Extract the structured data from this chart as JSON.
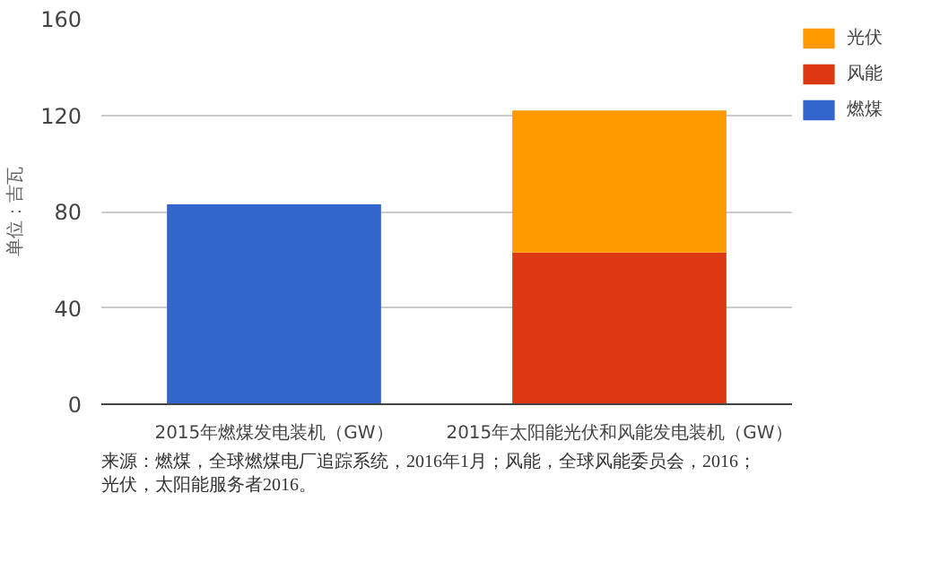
{
  "chart_data": {
    "type": "bar",
    "stacked": true,
    "ylabel": "单位：吉瓦",
    "categories": [
      "2015年燃煤发电装机（GW）",
      "2015年太阳能光伏和风能发电装机（GW）"
    ],
    "series": [
      {
        "name": "燃煤",
        "color": "#3366cc",
        "values": [
          83,
          null
        ]
      },
      {
        "name": "风能",
        "color": "#dc3912",
        "values": [
          null,
          63
        ]
      },
      {
        "name": "光伏",
        "color": "#ff9900",
        "values": [
          null,
          59
        ]
      }
    ],
    "ylim": [
      0,
      160
    ],
    "yticks": [
      0,
      40,
      80,
      120,
      160
    ],
    "grid": "y",
    "legend": "top right",
    "annotations": [
      "来源：燃煤，全球燃煤电厂追踪系统，2016年1月；风能，全球风能委员会，2016；",
      "光伏，太阳能服务者2016。"
    ]
  }
}
